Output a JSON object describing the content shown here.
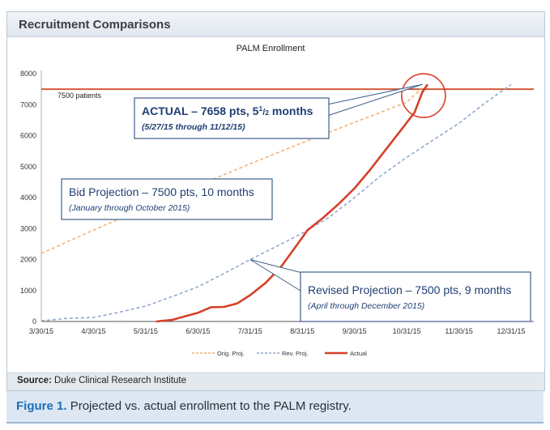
{
  "panel": {
    "title": "Recruitment Comparisons"
  },
  "source": {
    "label": "Source:",
    "text": "Duke Clinical Research Institute"
  },
  "caption": {
    "label": "Figure 1.",
    "text": "Projected vs. actual enrollment to the PALM registry."
  },
  "colors": {
    "orig": "#f2b27b",
    "rev": "#90a9ce",
    "actual": "#d6402a",
    "target": "#d15a3a",
    "annotation_border": "#3c5f8a",
    "annotation_text": "#1f3f73"
  },
  "chart_data": {
    "type": "line",
    "title": "PALM Enrollment",
    "xlabel": "",
    "ylabel": "",
    "ylim": [
      0,
      8000
    ],
    "xlim": [
      0,
      9.0
    ],
    "yticks": [
      0,
      1000,
      2000,
      3000,
      4000,
      5000,
      6000,
      7000,
      8000
    ],
    "ytick_labels": [
      "0",
      "1000",
      "2000",
      "3000",
      "4000",
      "5000",
      "6000",
      "7000",
      "8000"
    ],
    "xtick_labels": [
      "3/30/15",
      "4/30/15",
      "5/31/15",
      "6/30/15",
      "7/31/15",
      "8/31/15",
      "9/30/15",
      "10/31/15",
      "11/30/15",
      "12/31/15"
    ],
    "x_unit": "months since 3/30/15",
    "reference_line": {
      "value": 7500,
      "label": "7500 patients"
    },
    "series": [
      {
        "name": "Orig. Proj.",
        "style": "dashed",
        "x": [
          0,
          1,
          2,
          3,
          4,
          5,
          6,
          7,
          7.3
        ],
        "y": [
          2200,
          2950,
          3680,
          4390,
          5090,
          5770,
          6430,
          7080,
          7550
        ]
      },
      {
        "name": "Rev. Proj.",
        "style": "dashed",
        "x": [
          0,
          0.5,
          1,
          1.5,
          2,
          2.5,
          3,
          3.5,
          4,
          4.5,
          5,
          5.5,
          6,
          6.5,
          7,
          7.5,
          8,
          8.5,
          9
        ],
        "y": [
          20,
          100,
          130,
          300,
          500,
          800,
          1120,
          1550,
          2000,
          2420,
          2850,
          3350,
          4000,
          4700,
          5300,
          5850,
          6400,
          7050,
          7650
        ]
      },
      {
        "name": "Actual",
        "style": "solid",
        "x": [
          2.2,
          2.5,
          3,
          3.25,
          3.5,
          3.75,
          4,
          4.3,
          4.6,
          4.9,
          5.1,
          5.4,
          5.7,
          6,
          6.3,
          6.6,
          6.9,
          7.15,
          7.3,
          7.4
        ],
        "y": [
          0,
          50,
          280,
          460,
          470,
          580,
          850,
          1250,
          1780,
          2480,
          2950,
          3350,
          3800,
          4300,
          4900,
          5550,
          6200,
          6750,
          7400,
          7658
        ]
      }
    ],
    "annotations": [
      {
        "title": "ACTUAL – 7658 pts, 5",
        "superscript": "1",
        "fraction_slash": "/",
        "subscript": "2",
        "title_end": " months",
        "subtitle": "(5/27/15 through 11/12/15)"
      },
      {
        "title": "Bid Projection – 7500 pts, 10 months",
        "subtitle": "(January through October 2015)"
      },
      {
        "title": "Revised Projection – 7500 pts, 9 months",
        "subtitle": "(April through December 2015)"
      }
    ]
  }
}
